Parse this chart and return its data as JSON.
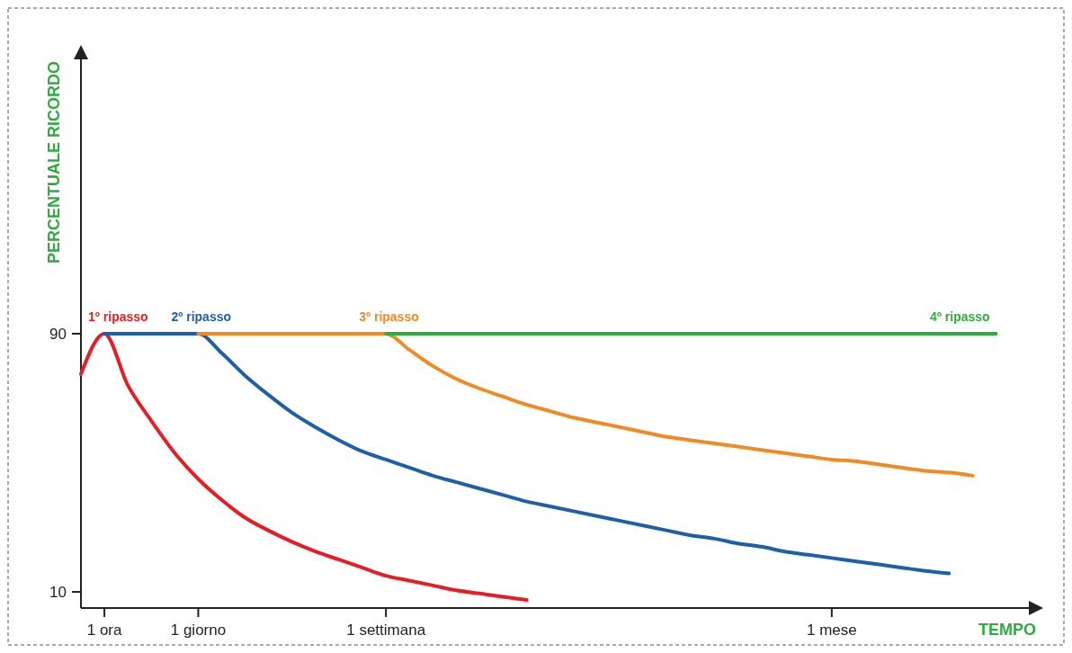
{
  "chart_data": {
    "type": "line",
    "xlabel": "TEMPO",
    "ylabel": "PERCENTUALE RICORDO",
    "ylim": [
      5,
      175
    ],
    "categories": [
      null,
      "1 ora",
      null,
      null,
      null,
      "1 giorno",
      null,
      null,
      null,
      null,
      null,
      null,
      null,
      "1 settimana",
      null,
      null,
      null,
      null,
      null,
      null,
      null,
      null,
      null,
      null,
      null,
      null,
      null,
      null,
      null,
      null,
      null,
      null,
      "1 mese",
      null,
      null,
      null,
      null,
      null,
      null,
      null,
      null
    ],
    "yticks": [
      10,
      90
    ],
    "grid": false,
    "marker": "none",
    "line_style": "solid",
    "series": [
      {
        "name": "1º ripasso",
        "color": "#e31e24",
        "values": [
          77.5,
          90,
          74,
          63,
          53,
          45,
          38.5,
          33,
          29,
          25.5,
          22.5,
          20,
          17.5,
          15,
          13.5,
          12,
          10.5,
          9.5,
          8.5,
          7.5,
          null,
          null,
          null,
          null,
          null,
          null,
          null,
          null,
          null,
          null,
          null,
          null,
          null,
          null,
          null,
          null,
          null,
          null,
          null,
          null,
          null
        ]
      },
      {
        "name": "2º ripasso",
        "color": "#1f5fa8",
        "values": [
          null,
          90,
          90,
          90,
          90,
          90,
          84,
          77,
          71,
          65.5,
          61,
          57,
          53.5,
          51,
          48.5,
          46,
          44,
          42,
          40,
          38,
          36.5,
          35,
          33.5,
          32,
          30.5,
          29,
          27.5,
          26.5,
          25,
          24,
          22.5,
          21.5,
          20.5,
          19.5,
          18.5,
          17.5,
          16.5,
          15.7,
          null,
          null,
          null
        ]
      },
      {
        "name": "3º ripasso",
        "color": "#f08a24",
        "values": [
          null,
          null,
          null,
          null,
          null,
          90,
          90,
          90,
          90,
          90,
          90,
          90,
          90,
          90,
          85,
          80,
          76,
          73,
          70.5,
          68,
          66,
          64,
          62.5,
          61,
          59.5,
          58,
          57,
          56,
          55,
          54,
          53,
          52,
          51,
          50.5,
          49.5,
          48.5,
          47.5,
          47,
          46,
          null,
          null
        ]
      },
      {
        "name": "4º ripasso",
        "color": "#2eac3e",
        "values": [
          null,
          null,
          null,
          null,
          null,
          null,
          null,
          null,
          null,
          null,
          null,
          null,
          null,
          90,
          90,
          90,
          90,
          90,
          90,
          90,
          90,
          90,
          90,
          90,
          90,
          90,
          90,
          90,
          90,
          90,
          90,
          90,
          90,
          90,
          90,
          90,
          90,
          90,
          90,
          90,
          null
        ]
      }
    ]
  }
}
